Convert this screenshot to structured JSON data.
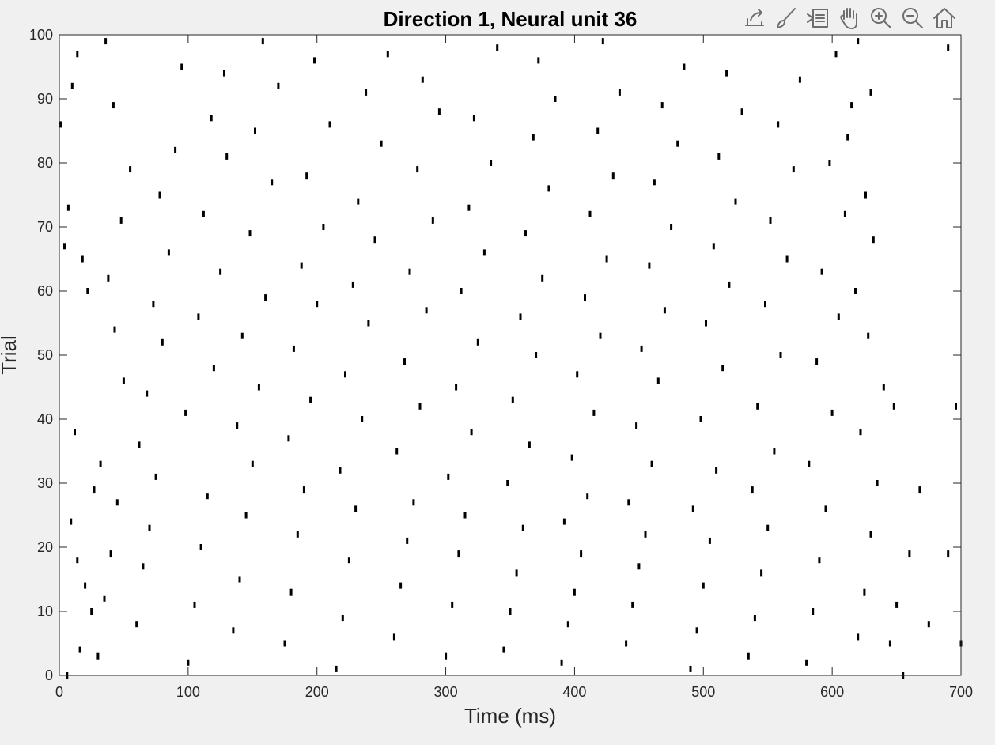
{
  "toolbar": {
    "icons": [
      "export-icon",
      "brush-icon",
      "datatip-icon",
      "pan-hand-icon",
      "zoom-in-icon",
      "zoom-out-icon",
      "home-icon"
    ]
  },
  "chart_data": {
    "type": "scatter",
    "subtype": "raster",
    "title": "Direction 1, Neural unit 36",
    "xlabel": "Time (ms)",
    "ylabel": "Trial",
    "xlim": [
      0,
      700
    ],
    "ylim": [
      0,
      100
    ],
    "xticks": [
      "0",
      "100",
      "200",
      "300",
      "400",
      "500",
      "600",
      "700"
    ],
    "yticks": [
      "0",
      "10",
      "20",
      "30",
      "40",
      "50",
      "60",
      "70",
      "80",
      "90",
      "100"
    ],
    "grid": false,
    "legend": "none",
    "mark": "vertical tick per spike",
    "marker_color": "#000000",
    "series": [
      {
        "points": [
          [
            1,
            86
          ],
          [
            7,
            73
          ],
          [
            10,
            92
          ],
          [
            14,
            97
          ],
          [
            4,
            67
          ],
          [
            18,
            65
          ],
          [
            22,
            60
          ],
          [
            12,
            38
          ],
          [
            27,
            29
          ],
          [
            9,
            24
          ],
          [
            14,
            18
          ],
          [
            20,
            14
          ],
          [
            25,
            10
          ],
          [
            16,
            4
          ],
          [
            6,
            0
          ],
          [
            30,
            3
          ],
          [
            35,
            12
          ],
          [
            40,
            19
          ],
          [
            45,
            27
          ],
          [
            32,
            33
          ],
          [
            50,
            46
          ],
          [
            43,
            54
          ],
          [
            38,
            62
          ],
          [
            48,
            71
          ],
          [
            55,
            79
          ],
          [
            42,
            89
          ],
          [
            36,
            99
          ],
          [
            60,
            8
          ],
          [
            65,
            17
          ],
          [
            70,
            23
          ],
          [
            75,
            31
          ],
          [
            62,
            36
          ],
          [
            68,
            44
          ],
          [
            80,
            52
          ],
          [
            73,
            58
          ],
          [
            85,
            66
          ],
          [
            78,
            75
          ],
          [
            90,
            82
          ],
          [
            95,
            95
          ],
          [
            100,
            2
          ],
          [
            105,
            11
          ],
          [
            110,
            20
          ],
          [
            115,
            28
          ],
          [
            98,
            41
          ],
          [
            120,
            48
          ],
          [
            108,
            56
          ],
          [
            125,
            63
          ],
          [
            112,
            72
          ],
          [
            130,
            81
          ],
          [
            118,
            87
          ],
          [
            128,
            94
          ],
          [
            135,
            7
          ],
          [
            140,
            15
          ],
          [
            145,
            25
          ],
          [
            150,
            33
          ],
          [
            138,
            39
          ],
          [
            155,
            45
          ],
          [
            142,
            53
          ],
          [
            160,
            59
          ],
          [
            148,
            69
          ],
          [
            165,
            77
          ],
          [
            152,
            85
          ],
          [
            170,
            92
          ],
          [
            158,
            99
          ],
          [
            175,
            5
          ],
          [
            180,
            13
          ],
          [
            185,
            22
          ],
          [
            190,
            29
          ],
          [
            178,
            37
          ],
          [
            195,
            43
          ],
          [
            182,
            51
          ],
          [
            200,
            58
          ],
          [
            188,
            64
          ],
          [
            205,
            70
          ],
          [
            192,
            78
          ],
          [
            210,
            86
          ],
          [
            198,
            96
          ],
          [
            215,
            1
          ],
          [
            220,
            9
          ],
          [
            225,
            18
          ],
          [
            230,
            26
          ],
          [
            218,
            32
          ],
          [
            235,
            40
          ],
          [
            222,
            47
          ],
          [
            240,
            55
          ],
          [
            228,
            61
          ],
          [
            245,
            68
          ],
          [
            232,
            74
          ],
          [
            250,
            83
          ],
          [
            238,
            91
          ],
          [
            255,
            97
          ],
          [
            260,
            6
          ],
          [
            265,
            14
          ],
          [
            270,
            21
          ],
          [
            275,
            27
          ],
          [
            262,
            35
          ],
          [
            280,
            42
          ],
          [
            268,
            49
          ],
          [
            285,
            57
          ],
          [
            272,
            63
          ],
          [
            290,
            71
          ],
          [
            278,
            79
          ],
          [
            295,
            88
          ],
          [
            282,
            93
          ],
          [
            300,
            3
          ],
          [
            305,
            11
          ],
          [
            310,
            19
          ],
          [
            315,
            25
          ],
          [
            302,
            31
          ],
          [
            320,
            38
          ],
          [
            308,
            45
          ],
          [
            325,
            52
          ],
          [
            312,
            60
          ],
          [
            330,
            66
          ],
          [
            318,
            73
          ],
          [
            335,
            80
          ],
          [
            322,
            87
          ],
          [
            340,
            98
          ],
          [
            345,
            4
          ],
          [
            350,
            10
          ],
          [
            355,
            16
          ],
          [
            360,
            23
          ],
          [
            348,
            30
          ],
          [
            365,
            36
          ],
          [
            352,
            43
          ],
          [
            370,
            50
          ],
          [
            358,
            56
          ],
          [
            375,
            62
          ],
          [
            362,
            69
          ],
          [
            380,
            76
          ],
          [
            368,
            84
          ],
          [
            385,
            90
          ],
          [
            372,
            96
          ],
          [
            390,
            2
          ],
          [
            395,
            8
          ],
          [
            400,
            13
          ],
          [
            405,
            19
          ],
          [
            392,
            24
          ],
          [
            410,
            28
          ],
          [
            398,
            34
          ],
          [
            415,
            41
          ],
          [
            402,
            47
          ],
          [
            420,
            53
          ],
          [
            408,
            59
          ],
          [
            425,
            65
          ],
          [
            412,
            72
          ],
          [
            430,
            78
          ],
          [
            418,
            85
          ],
          [
            435,
            91
          ],
          [
            422,
            99
          ],
          [
            440,
            5
          ],
          [
            445,
            11
          ],
          [
            450,
            17
          ],
          [
            455,
            22
          ],
          [
            442,
            27
          ],
          [
            460,
            33
          ],
          [
            448,
            39
          ],
          [
            465,
            46
          ],
          [
            452,
            51
          ],
          [
            470,
            57
          ],
          [
            458,
            64
          ],
          [
            475,
            70
          ],
          [
            462,
            77
          ],
          [
            480,
            83
          ],
          [
            468,
            89
          ],
          [
            485,
            95
          ],
          [
            490,
            1
          ],
          [
            495,
            7
          ],
          [
            500,
            14
          ],
          [
            505,
            21
          ],
          [
            492,
            26
          ],
          [
            510,
            32
          ],
          [
            498,
            40
          ],
          [
            515,
            48
          ],
          [
            502,
            55
          ],
          [
            520,
            61
          ],
          [
            508,
            67
          ],
          [
            525,
            74
          ],
          [
            512,
            81
          ],
          [
            530,
            88
          ],
          [
            518,
            94
          ],
          [
            535,
            3
          ],
          [
            540,
            9
          ],
          [
            545,
            16
          ],
          [
            550,
            23
          ],
          [
            538,
            29
          ],
          [
            555,
            35
          ],
          [
            542,
            42
          ],
          [
            560,
            50
          ],
          [
            548,
            58
          ],
          [
            565,
            65
          ],
          [
            552,
            71
          ],
          [
            570,
            79
          ],
          [
            558,
            86
          ],
          [
            575,
            93
          ],
          [
            580,
            2
          ],
          [
            585,
            10
          ],
          [
            590,
            18
          ],
          [
            595,
            26
          ],
          [
            582,
            33
          ],
          [
            600,
            41
          ],
          [
            588,
            49
          ],
          [
            605,
            56
          ],
          [
            592,
            63
          ],
          [
            610,
            72
          ],
          [
            598,
            80
          ],
          [
            615,
            89
          ],
          [
            603,
            97
          ],
          [
            620,
            6
          ],
          [
            625,
            13
          ],
          [
            630,
            22
          ],
          [
            635,
            30
          ],
          [
            622,
            38
          ],
          [
            640,
            45
          ],
          [
            628,
            53
          ],
          [
            618,
            60
          ],
          [
            632,
            68
          ],
          [
            626,
            75
          ],
          [
            612,
            84
          ],
          [
            630,
            91
          ],
          [
            620,
            99
          ],
          [
            645,
            5
          ],
          [
            650,
            11
          ],
          [
            660,
            19
          ],
          [
            668,
            29
          ],
          [
            648,
            42
          ],
          [
            690,
            19
          ],
          [
            696,
            42
          ],
          [
            700,
            5
          ],
          [
            690,
            98
          ],
          [
            655,
            0
          ],
          [
            675,
            8
          ]
        ]
      }
    ]
  }
}
